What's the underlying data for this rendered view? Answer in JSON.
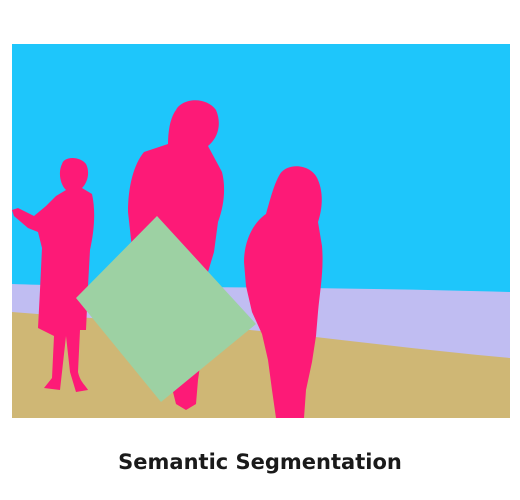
{
  "caption": "Semantic Segmentation",
  "segments": [
    {
      "name": "sky",
      "color": "#1ec6fb"
    },
    {
      "name": "sea",
      "color": "#c0bdf2"
    },
    {
      "name": "sand",
      "color": "#cfb775"
    },
    {
      "name": "person",
      "color": "#fd1a77"
    },
    {
      "name": "kite",
      "color": "#9dd1a3"
    }
  ]
}
